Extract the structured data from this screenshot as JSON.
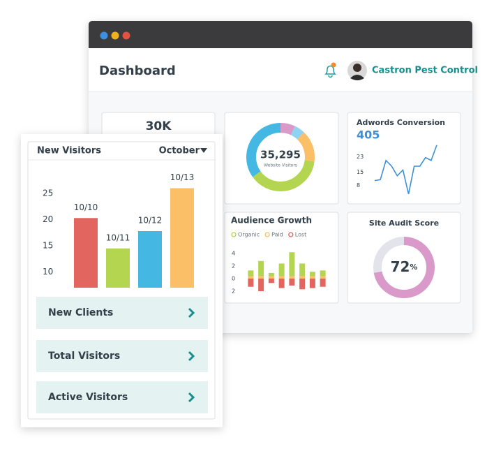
{
  "window": {
    "dots": [
      "#3d8fe0",
      "#f0b21c",
      "#e2523f"
    ]
  },
  "header": {
    "title": "Dashboard",
    "user": "Castron Pest Control"
  },
  "stat_card": {
    "value": "30K"
  },
  "visitors_donut": {
    "total": "35,295",
    "label": "Website Visitors",
    "segments": [
      {
        "color": "#d99ac9",
        "value": 7
      },
      {
        "color": "#8fd3f2",
        "value": 5
      },
      {
        "color": "#fbbf68",
        "value": 15
      },
      {
        "color": "#b3d550",
        "value": 38
      },
      {
        "color": "#45b7e3",
        "value": 35
      }
    ]
  },
  "adwords": {
    "title": "Adwords Conversion",
    "value": "405",
    "values": [
      10.5,
      11,
      21,
      18,
      13,
      16,
      3.5,
      18,
      18,
      22.5,
      21,
      29
    ],
    "ylim": [
      2,
      30
    ],
    "yticks": [
      23,
      15,
      8
    ],
    "color": "#3d8fd6"
  },
  "audience": {
    "title": "Audience Growth",
    "series": [
      {
        "name": "Organic",
        "color": "#b3d550",
        "values": [
          0.9,
          2.4,
          0.5,
          2,
          3.8,
          2,
          0.7,
          0.9
        ]
      },
      {
        "name": "Paid",
        "color": "#fbbf68",
        "values": [
          0.4,
          0.4,
          0.4,
          0.4,
          0.4,
          0.4,
          0.4,
          0.4
        ]
      },
      {
        "name": "Lost",
        "color": "#e2665f",
        "values": [
          -1.3,
          -2,
          -0.7,
          -1.5,
          -1.1,
          -1.7,
          -1.5,
          -1.3
        ]
      }
    ],
    "ylim": [
      -2.5,
      4.5
    ],
    "yticks": [
      4,
      2,
      0,
      {
        "value": -2,
        "label": "2"
      }
    ]
  },
  "site_audit": {
    "title": "Site Audit Score",
    "score": 72,
    "unit": "%",
    "color": "#d99ac9",
    "track": "#e3e3ec"
  },
  "new_visitors": {
    "title": "New Visitors",
    "dropdown": "October",
    "categories": [
      "10/10",
      "10/11",
      "10/12",
      "10/13"
    ],
    "values": [
      20.3,
      14.5,
      17.8,
      26
    ],
    "colors": [
      "#e2665f",
      "#b3d550",
      "#45b7e3",
      "#fbbf68"
    ],
    "ylim": [
      7,
      28
    ],
    "yticks": [
      25,
      20,
      15,
      10
    ]
  },
  "menu": [
    "New Clients",
    "Total Visitors",
    "Active Visitors"
  ]
}
